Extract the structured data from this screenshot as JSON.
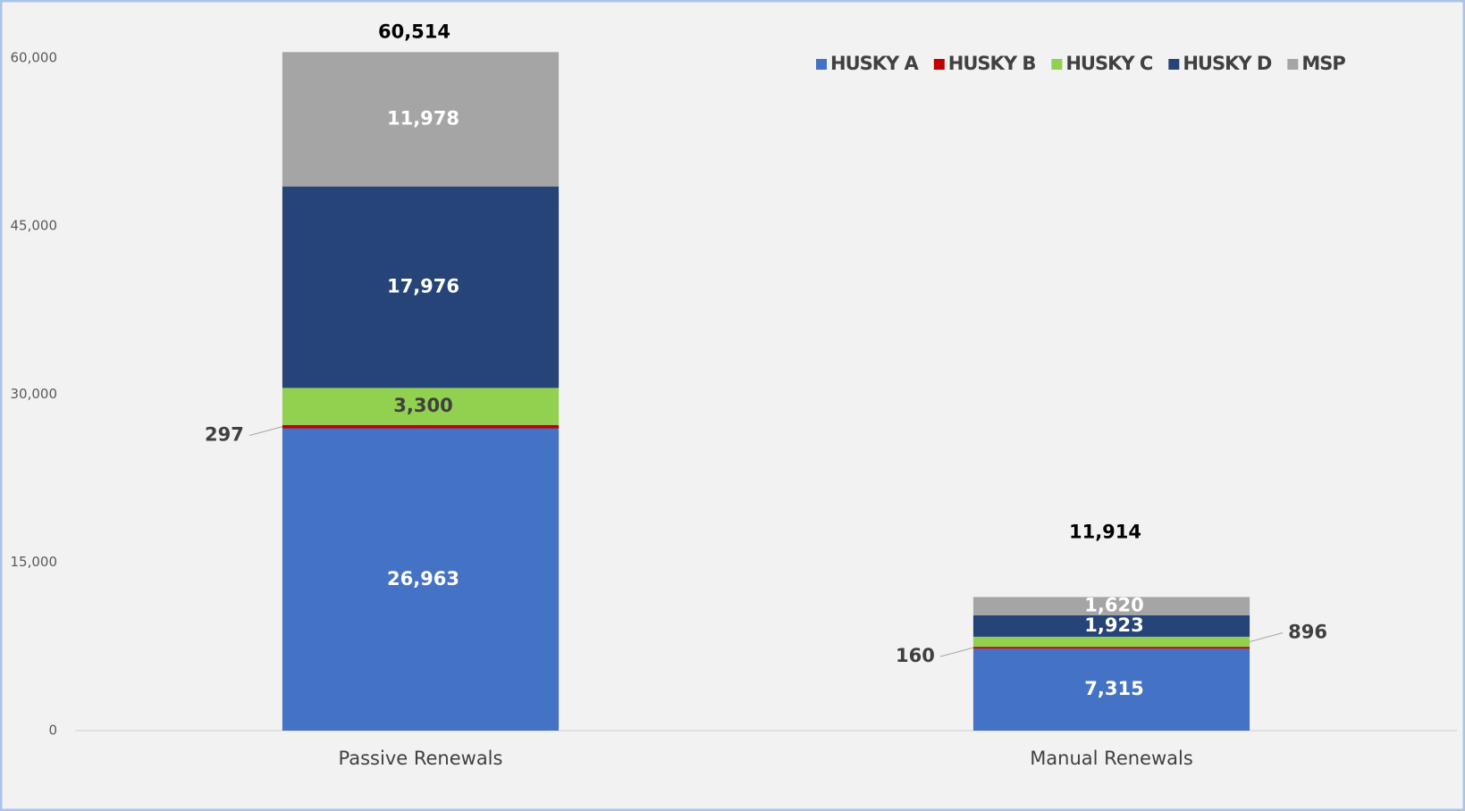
{
  "chart_data": {
    "type": "stacked_bar",
    "categories": [
      "Passive Renewals",
      "Manual Renewals"
    ],
    "series": [
      {
        "name": "HUSKY A",
        "color": "#4472c4",
        "values": [
          26963,
          7315
        ],
        "value_labels": [
          "26,963",
          "7,315"
        ]
      },
      {
        "name": "HUSKY B",
        "color": "#c00000",
        "values": [
          297,
          160
        ],
        "value_labels": [
          "297",
          "160"
        ]
      },
      {
        "name": "HUSKY C",
        "color": "#92d050",
        "values": [
          3300,
          896
        ],
        "value_labels": [
          "3,300",
          "896"
        ]
      },
      {
        "name": "HUSKY D",
        "color": "#264478",
        "values": [
          17976,
          1923
        ],
        "value_labels": [
          "17,976",
          "1,923"
        ]
      },
      {
        "name": "MSP",
        "color": "#a5a5a5",
        "values": [
          11978,
          1620
        ],
        "value_labels": [
          "11,978",
          "1,620"
        ]
      }
    ],
    "totals": {
      "values": [
        60514,
        11914
      ],
      "value_labels": [
        "60,514",
        "11,914"
      ]
    },
    "ylim": [
      0,
      65000
    ],
    "yticks": [
      0,
      {
        "value": 15000,
        "label": "15,000"
      },
      {
        "value": 30000,
        "label": "30,000"
      },
      {
        "value": 45000,
        "label": "45,000"
      },
      {
        "value": 60000,
        "label": "60,000"
      }
    ],
    "legend": "top-right",
    "grid": false
  }
}
